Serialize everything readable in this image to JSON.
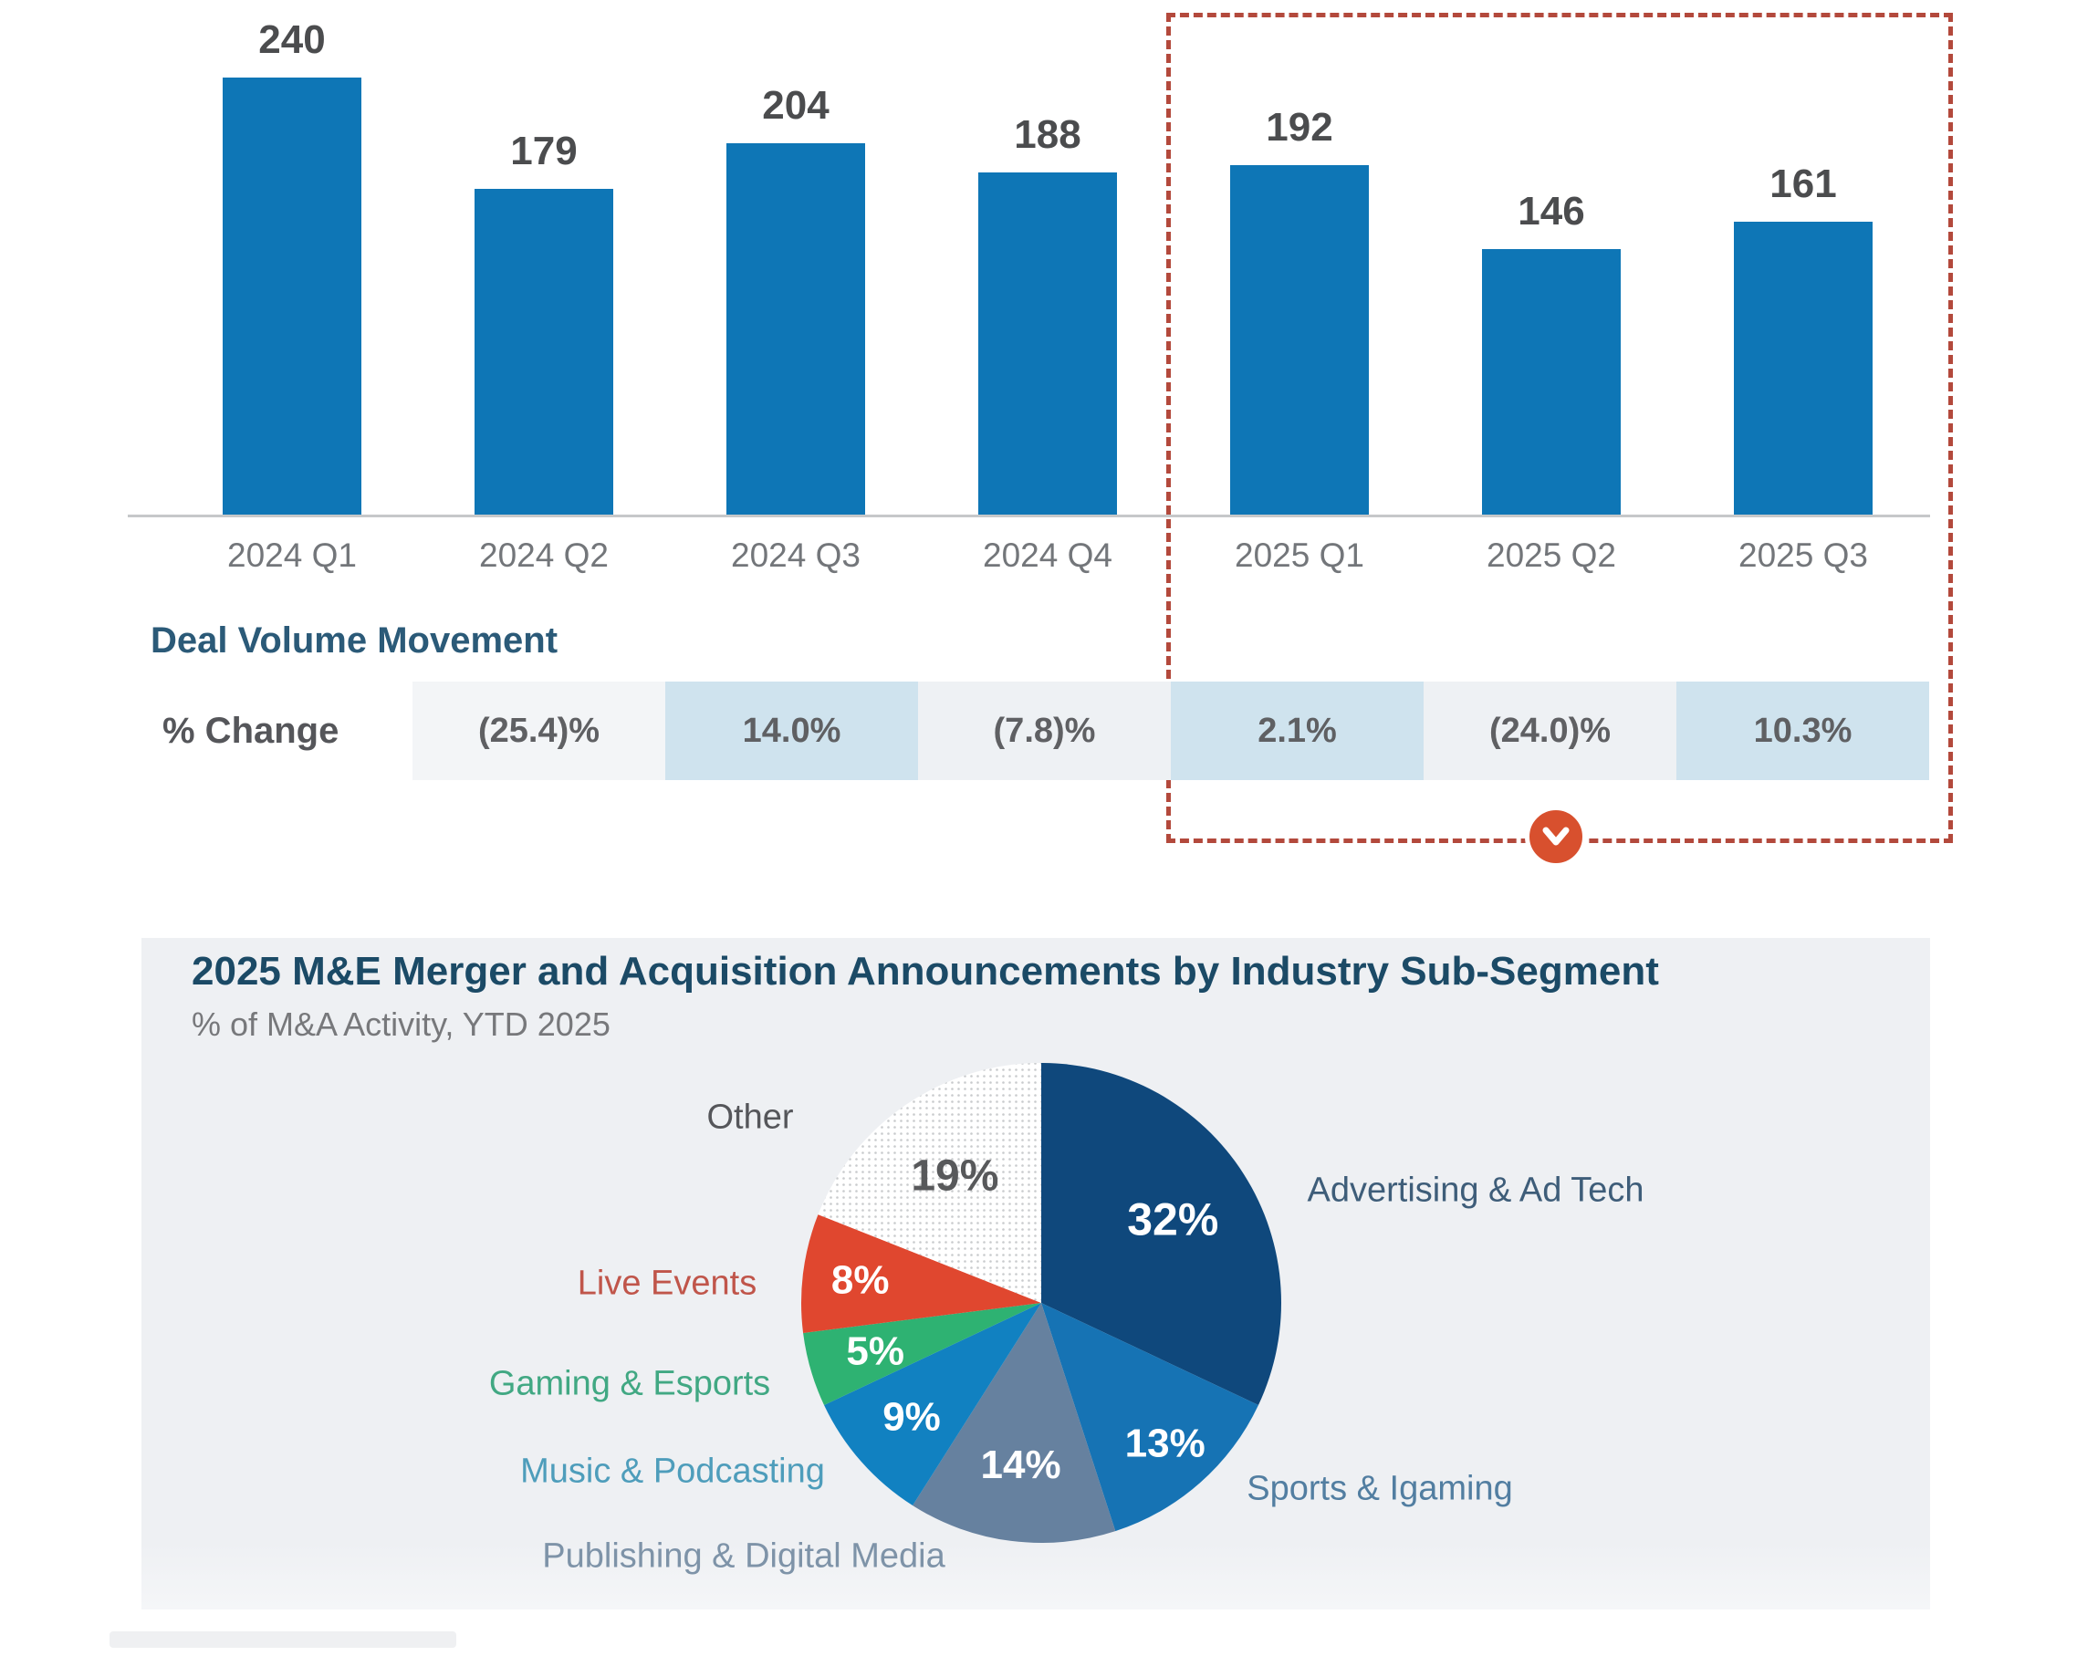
{
  "chart_data": [
    {
      "type": "bar",
      "title": "",
      "categories": [
        "2024 Q1",
        "2024 Q2",
        "2024 Q3",
        "2024 Q4",
        "2025 Q1",
        "2025 Q2",
        "2025 Q3"
      ],
      "values": [
        240,
        179,
        204,
        188,
        192,
        146,
        161
      ],
      "ylim": [
        0,
        240
      ],
      "grid": false,
      "bar_color": "#0e76b6",
      "value_label_color": "#4b4c4e",
      "category_label_color": "#73767a",
      "highlight_box": {
        "categories": [
          "2025 Q1",
          "2025 Q2",
          "2025 Q3"
        ],
        "border_color": "#b3493c",
        "style": "dashed"
      },
      "movement_row": {
        "section_label": "Deal Volume Movement",
        "row_label": "% Change",
        "values": [
          "(25.4)%",
          "14.0%",
          "(7.8)%",
          "2.1%",
          "(24.0)%",
          "10.3%"
        ],
        "cell_colors": [
          "#f3f5f7",
          "#cfe3ee",
          "#eef1f4",
          "#cfe3ee",
          "#eef1f4",
          "#cfe3ee"
        ]
      }
    },
    {
      "type": "pie",
      "title": "2025 M&E Merger and Acquisition Announcements by Industry Sub-Segment",
      "subtitle": "% of M&A Activity, YTD 2025",
      "start_angle_deg": 0,
      "direction": "clockwise",
      "legend_position": "around-pie",
      "slices": [
        {
          "label": "Advertising & Ad Tech",
          "value": 32,
          "pct_label": "32%",
          "color": "#0f487c",
          "label_color": "#3e5d79",
          "pct_color": "#ffffff"
        },
        {
          "label": "Sports & Igaming",
          "value": 13,
          "pct_label": "13%",
          "color": "#1673b4",
          "label_color": "#527ea1",
          "pct_color": "#ffffff"
        },
        {
          "label": "Publishing & Digital Media",
          "value": 14,
          "pct_label": "14%",
          "color": "#66819f",
          "label_color": "#7e93a8",
          "pct_color": "#ffffff"
        },
        {
          "label": "Music & Podcasting",
          "value": 9,
          "pct_label": "9%",
          "color": "#1181c1",
          "label_color": "#4e9dbb",
          "pct_color": "#ffffff"
        },
        {
          "label": "Gaming & Esports",
          "value": 5,
          "pct_label": "5%",
          "color": "#2eb272",
          "label_color": "#41a883",
          "pct_color": "#ffffff"
        },
        {
          "label": "Live Events",
          "value": 8,
          "pct_label": "8%",
          "color": "#e0472f",
          "label_color": "#c0554a",
          "pct_color": "#ffffff"
        },
        {
          "label": "Other",
          "value": 19,
          "pct_label": "19%",
          "color": "dotted-pattern",
          "label_color": "#55565a",
          "pct_color": "#58595b"
        }
      ]
    }
  ],
  "expand_button": {
    "icon": "chevron-down-icon",
    "color": "#d8502e"
  }
}
